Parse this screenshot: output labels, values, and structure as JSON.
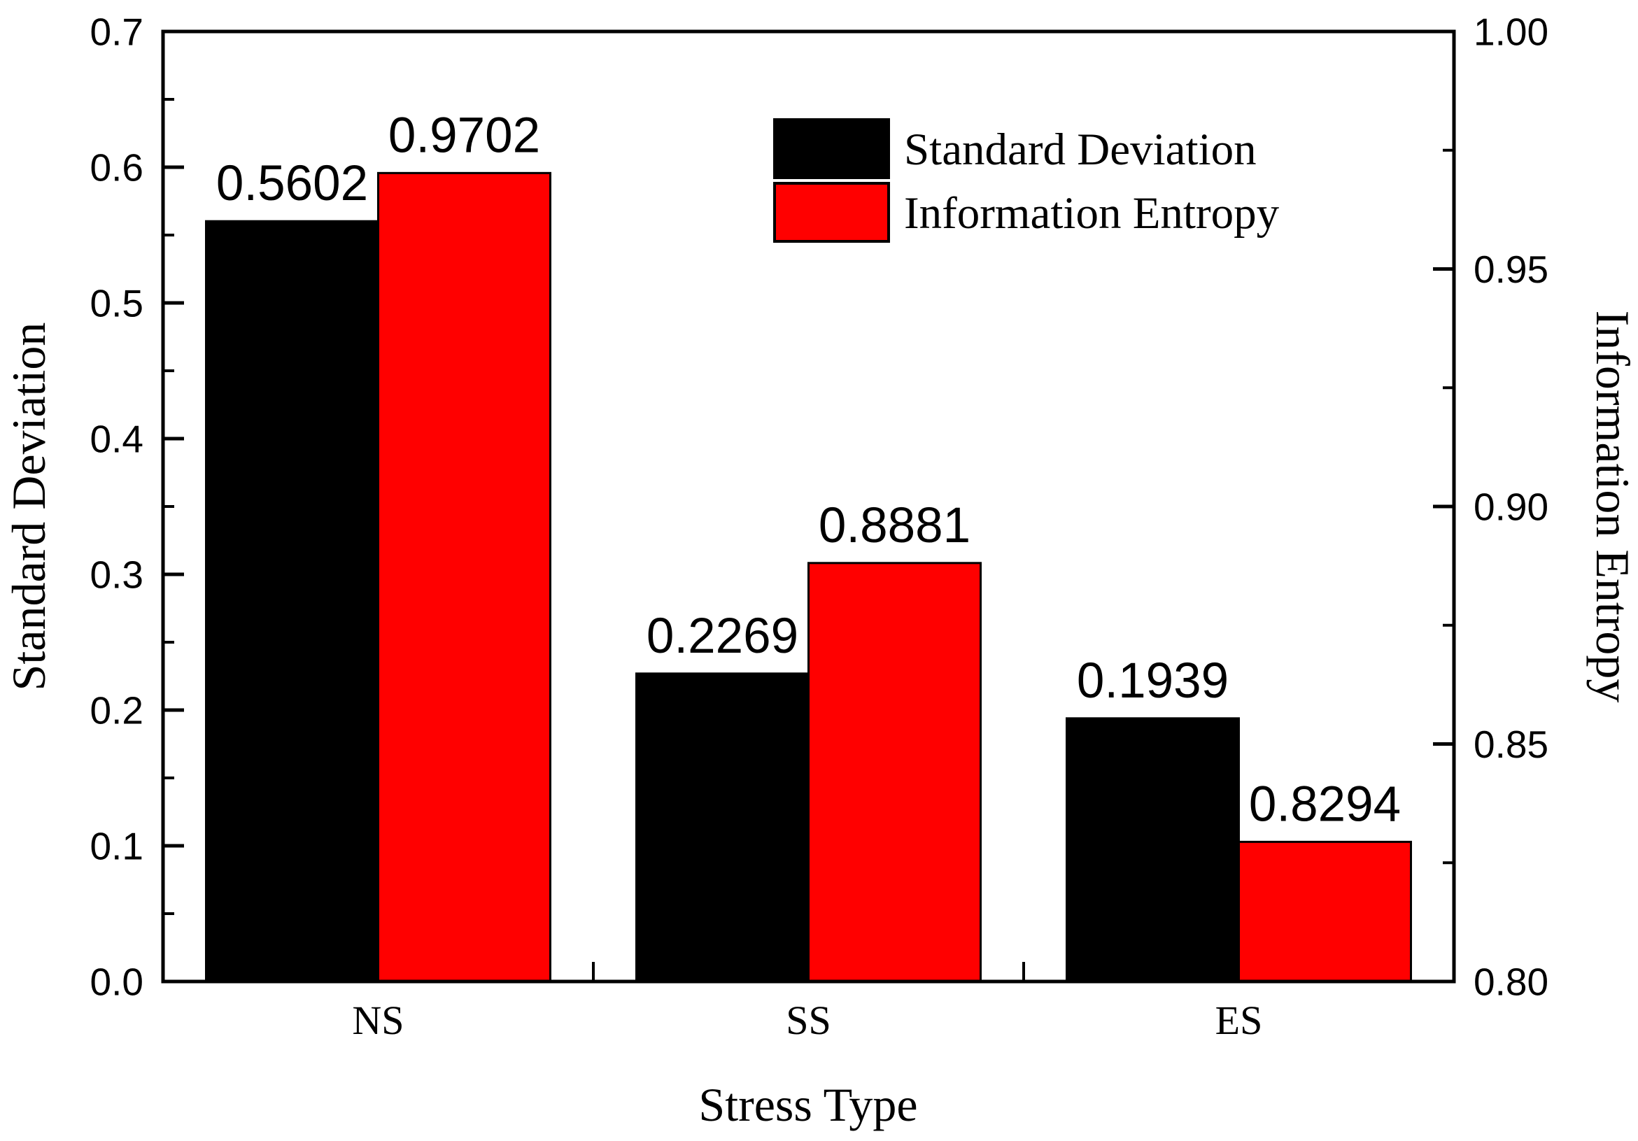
{
  "chart_data": {
    "type": "bar",
    "title": "",
    "xlabel": "Stress Type",
    "categories": [
      "NS",
      "SS",
      "ES"
    ],
    "series": [
      {
        "name": "Standard Deviation",
        "axis": "left",
        "color": "#000000",
        "values": [
          0.5602,
          0.2269,
          0.1939
        ],
        "value_labels": [
          "0.5602",
          "0.2269",
          "0.1939"
        ]
      },
      {
        "name": "Information Entropy",
        "axis": "right",
        "color": "#ff0000",
        "values": [
          0.9702,
          0.8881,
          0.8294
        ],
        "value_labels": [
          "0.9702",
          "0.8881",
          "0.8294"
        ]
      }
    ],
    "axes": {
      "left": {
        "title": "Standard Deviation",
        "min": 0.0,
        "max": 0.7,
        "major_ticks": [
          0.0,
          0.1,
          0.2,
          0.3,
          0.4,
          0.5,
          0.6,
          0.7
        ],
        "tick_labels": [
          "0.0",
          "0.1",
          "0.2",
          "0.3",
          "0.4",
          "0.5",
          "0.6",
          "0.7"
        ],
        "minor_ticks": [
          0.05,
          0.15,
          0.25,
          0.35,
          0.45,
          0.55,
          0.65
        ]
      },
      "right": {
        "title": "Information Entropy",
        "min": 0.8,
        "max": 1.0,
        "major_ticks": [
          0.8,
          0.85,
          0.9,
          0.95,
          1.0
        ],
        "tick_labels": [
          "0.80",
          "0.85",
          "0.90",
          "0.95",
          "1.00"
        ],
        "minor_ticks": [
          0.825,
          0.875,
          0.925,
          0.975
        ]
      }
    },
    "legend": {
      "position": "top-center-inside",
      "entries": [
        {
          "label": "Standard Deviation",
          "color": "#000000"
        },
        {
          "label": "Information Entropy",
          "color": "#ff0000"
        }
      ]
    },
    "grid": false,
    "bar_gap_fraction": 0.2,
    "tick_direction": "in",
    "text_color": "#000000",
    "frame_color": "#000000",
    "background": "#ffffff"
  }
}
